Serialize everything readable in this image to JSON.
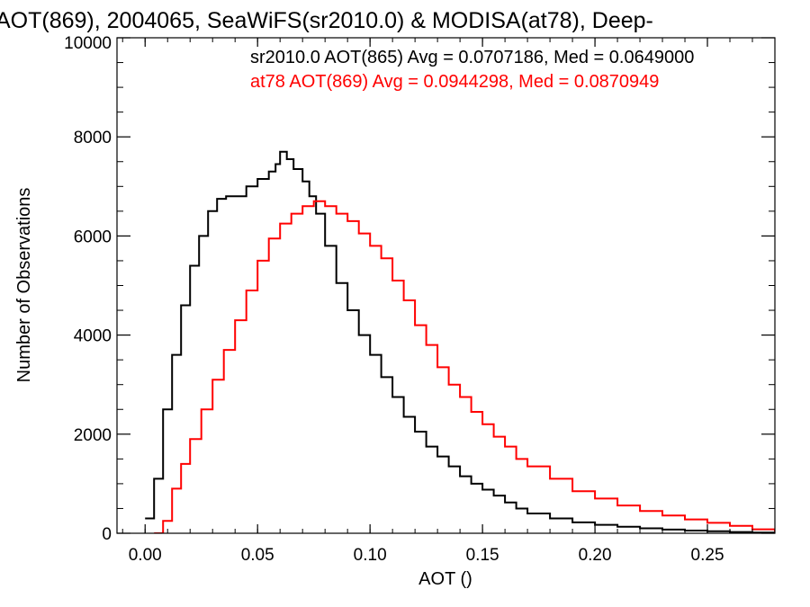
{
  "chart_data": {
    "type": "line",
    "title": "AOT(869), 2004065, SeaWiFS(sr2010.0) & MODISA(at78), Deep-",
    "xlabel": "AOT ()",
    "ylabel": "Number of Observations",
    "xlim": [
      -0.0125,
      0.28
    ],
    "ylim": [
      0,
      10000
    ],
    "x_ticks": [
      0.0,
      0.05,
      0.1,
      0.15,
      0.2,
      0.25
    ],
    "x_tick_labels": [
      "0.00",
      "0.05",
      "0.10",
      "0.15",
      "0.20",
      "0.25"
    ],
    "y_ticks": [
      0,
      2000,
      4000,
      6000,
      8000,
      10000
    ],
    "y_tick_labels": [
      "0",
      "2000",
      "4000",
      "6000",
      "8000",
      "10000"
    ],
    "grid": false,
    "legend_placement": "top-right",
    "annotations": [
      {
        "text": "sr2010.0 AOT(865) Avg = 0.0707186, Med = 0.0649000",
        "color": "#000000"
      },
      {
        "text": "at78 AOT(869) Avg = 0.0944298, Med = 0.0870949",
        "color": "#ff0000"
      }
    ],
    "series": [
      {
        "color": "#000000",
        "x": [
          0.0,
          0.004,
          0.008,
          0.012,
          0.016,
          0.02,
          0.024,
          0.028,
          0.032,
          0.036,
          0.04,
          0.045,
          0.05,
          0.055,
          0.058,
          0.06,
          0.063,
          0.066,
          0.07,
          0.073,
          0.076,
          0.08,
          0.085,
          0.09,
          0.095,
          0.1,
          0.105,
          0.11,
          0.115,
          0.12,
          0.125,
          0.13,
          0.135,
          0.14,
          0.145,
          0.15,
          0.155,
          0.16,
          0.165,
          0.17,
          0.18,
          0.19,
          0.2,
          0.21,
          0.22,
          0.23,
          0.24,
          0.25,
          0.26,
          0.27,
          0.28
        ],
        "y": [
          300,
          1100,
          2500,
          3600,
          4600,
          5400,
          6000,
          6500,
          6750,
          6800,
          6800,
          7000,
          7150,
          7300,
          7450,
          7700,
          7550,
          7350,
          7100,
          6800,
          6450,
          5800,
          5050,
          4500,
          4000,
          3600,
          3150,
          2750,
          2350,
          2050,
          1750,
          1550,
          1350,
          1150,
          1000,
          880,
          760,
          620,
          500,
          400,
          300,
          220,
          170,
          130,
          100,
          75,
          55,
          40,
          25,
          15,
          10
        ]
      },
      {
        "color": "#ff0000",
        "x": [
          0.004,
          0.008,
          0.012,
          0.016,
          0.02,
          0.025,
          0.03,
          0.035,
          0.04,
          0.045,
          0.05,
          0.055,
          0.06,
          0.065,
          0.07,
          0.075,
          0.08,
          0.085,
          0.09,
          0.095,
          0.1,
          0.105,
          0.11,
          0.115,
          0.12,
          0.125,
          0.13,
          0.135,
          0.14,
          0.145,
          0.15,
          0.155,
          0.16,
          0.165,
          0.17,
          0.18,
          0.19,
          0.2,
          0.21,
          0.22,
          0.23,
          0.24,
          0.25,
          0.26,
          0.27,
          0.28
        ],
        "y": [
          0,
          250,
          900,
          1400,
          1900,
          2500,
          3100,
          3700,
          4300,
          4900,
          5500,
          5950,
          6250,
          6450,
          6600,
          6700,
          6600,
          6450,
          6300,
          6050,
          5800,
          5550,
          5100,
          4700,
          4200,
          3800,
          3350,
          3000,
          2750,
          2450,
          2200,
          1950,
          1750,
          1500,
          1350,
          1100,
          850,
          700,
          560,
          450,
          360,
          280,
          210,
          150,
          80,
          30
        ]
      }
    ]
  }
}
